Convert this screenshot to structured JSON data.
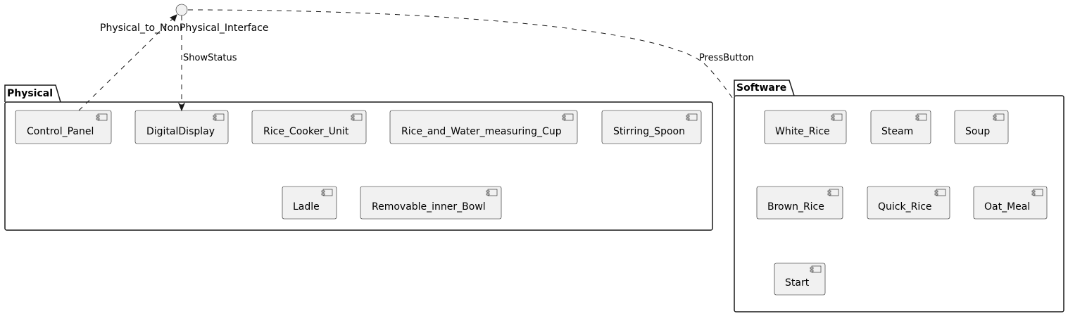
{
  "interface": {
    "name": "Physical_to_NonPhysical_Interface"
  },
  "packages": {
    "physical": {
      "title": "Physical",
      "components": {
        "control_panel": "Control_Panel",
        "digital_display": "DigitalDisplay",
        "rice_cooker_unit": "Rice_Cooker_Unit",
        "measuring_cup": "Rice_and_Water_measuring_Cup",
        "stirring_spoon": "Stirring_Spoon",
        "ladle": "Ladle",
        "inner_bowl": "Removable_inner_Bowl"
      }
    },
    "software": {
      "title": "Software",
      "components": {
        "white_rice": "White_Rice",
        "steam": "Steam",
        "soup": "Soup",
        "brown_rice": "Brown_Rice",
        "quick_rice": "Quick_Rice",
        "oat_meal": "Oat_Meal",
        "start": "Start"
      }
    }
  },
  "relations": {
    "show_status": "ShowStatus",
    "press_button": "PressButton"
  }
}
